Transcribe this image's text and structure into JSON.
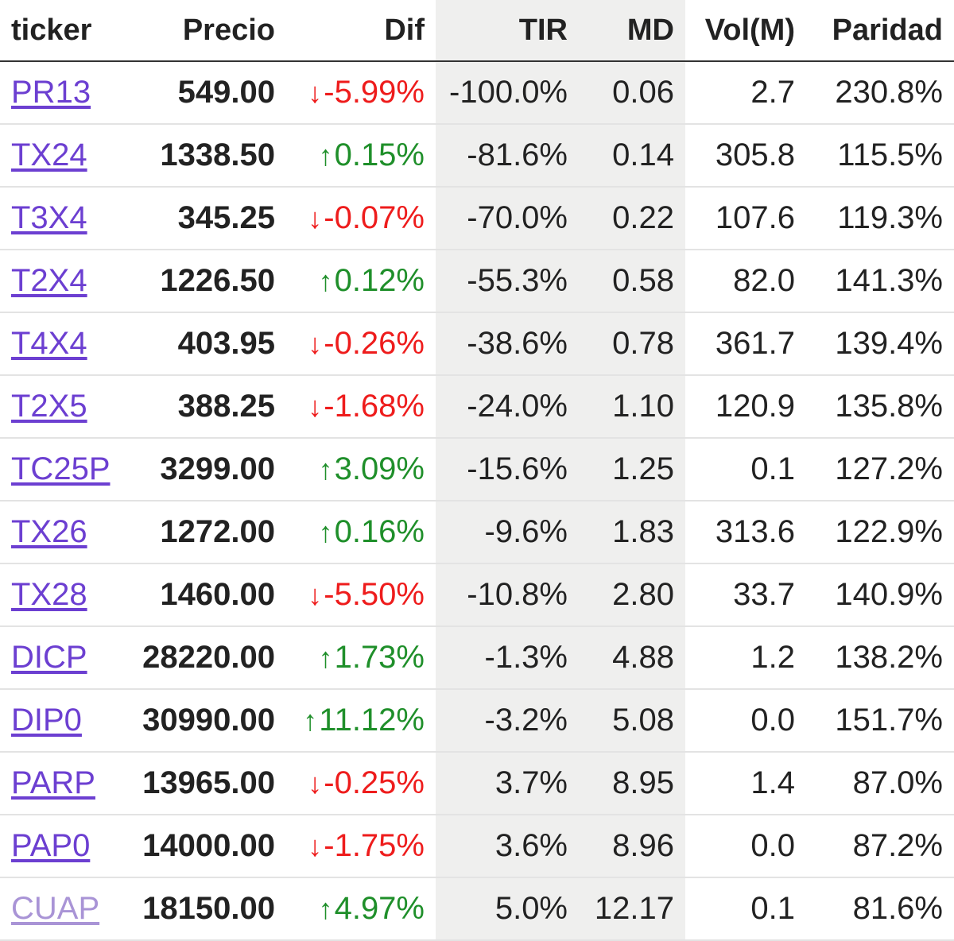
{
  "columns": {
    "ticker": "ticker",
    "precio": "Precio",
    "dif": "Dif",
    "tir": "TIR",
    "md": "MD",
    "vol": "Vol(M)",
    "paridad": "Paridad"
  },
  "colors": {
    "up": "#1f8f2a",
    "down": "#ee1c1c",
    "link": "#6c3fd1",
    "link_visited": "#a994d6",
    "shaded_column": "#efefee"
  },
  "icons": {
    "up": "arrow-up-icon",
    "down": "arrow-down-icon"
  },
  "rows": [
    {
      "ticker": "PR13",
      "precio": "549.00",
      "dir": "down",
      "arrow": "↓",
      "dif": "-5.99%",
      "tir": "-100.0%",
      "md": "0.06",
      "vol": "2.7",
      "paridad": "230.8%"
    },
    {
      "ticker": "TX24",
      "precio": "1338.50",
      "dir": "up",
      "arrow": "↑",
      "dif": "0.15%",
      "tir": "-81.6%",
      "md": "0.14",
      "vol": "305.8",
      "paridad": "115.5%"
    },
    {
      "ticker": "T3X4",
      "precio": "345.25",
      "dir": "down",
      "arrow": "↓",
      "dif": "-0.07%",
      "tir": "-70.0%",
      "md": "0.22",
      "vol": "107.6",
      "paridad": "119.3%"
    },
    {
      "ticker": "T2X4",
      "precio": "1226.50",
      "dir": "up",
      "arrow": "↑",
      "dif": "0.12%",
      "tir": "-55.3%",
      "md": "0.58",
      "vol": "82.0",
      "paridad": "141.3%"
    },
    {
      "ticker": "T4X4",
      "precio": "403.95",
      "dir": "down",
      "arrow": "↓",
      "dif": "-0.26%",
      "tir": "-38.6%",
      "md": "0.78",
      "vol": "361.7",
      "paridad": "139.4%"
    },
    {
      "ticker": "T2X5",
      "precio": "388.25",
      "dir": "down",
      "arrow": "↓",
      "dif": "-1.68%",
      "tir": "-24.0%",
      "md": "1.10",
      "vol": "120.9",
      "paridad": "135.8%"
    },
    {
      "ticker": "TC25P",
      "precio": "3299.00",
      "dir": "up",
      "arrow": "↑",
      "dif": "3.09%",
      "tir": "-15.6%",
      "md": "1.25",
      "vol": "0.1",
      "paridad": "127.2%"
    },
    {
      "ticker": "TX26",
      "precio": "1272.00",
      "dir": "up",
      "arrow": "↑",
      "dif": "0.16%",
      "tir": "-9.6%",
      "md": "1.83",
      "vol": "313.6",
      "paridad": "122.9%"
    },
    {
      "ticker": "TX28",
      "precio": "1460.00",
      "dir": "down",
      "arrow": "↓",
      "dif": "-5.50%",
      "tir": "-10.8%",
      "md": "2.80",
      "vol": "33.7",
      "paridad": "140.9%"
    },
    {
      "ticker": "DICP",
      "precio": "28220.00",
      "dir": "up",
      "arrow": "↑",
      "dif": "1.73%",
      "tir": "-1.3%",
      "md": "4.88",
      "vol": "1.2",
      "paridad": "138.2%"
    },
    {
      "ticker": "DIP0",
      "precio": "30990.00",
      "dir": "up",
      "arrow": "↑",
      "dif": "11.12%",
      "tir": "-3.2%",
      "md": "5.08",
      "vol": "0.0",
      "paridad": "151.7%"
    },
    {
      "ticker": "PARP",
      "precio": "13965.00",
      "dir": "down",
      "arrow": "↓",
      "dif": "-0.25%",
      "tir": "3.7%",
      "md": "8.95",
      "vol": "1.4",
      "paridad": "87.0%"
    },
    {
      "ticker": "PAP0",
      "precio": "14000.00",
      "dir": "down",
      "arrow": "↓",
      "dif": "-1.75%",
      "tir": "3.6%",
      "md": "8.96",
      "vol": "0.0",
      "paridad": "87.2%"
    },
    {
      "ticker": "CUAP",
      "precio": "18150.00",
      "dir": "up",
      "arrow": "↑",
      "dif": "4.97%",
      "tir": "5.0%",
      "md": "12.17",
      "vol": "0.1",
      "paridad": "81.6%",
      "visited": true
    }
  ]
}
